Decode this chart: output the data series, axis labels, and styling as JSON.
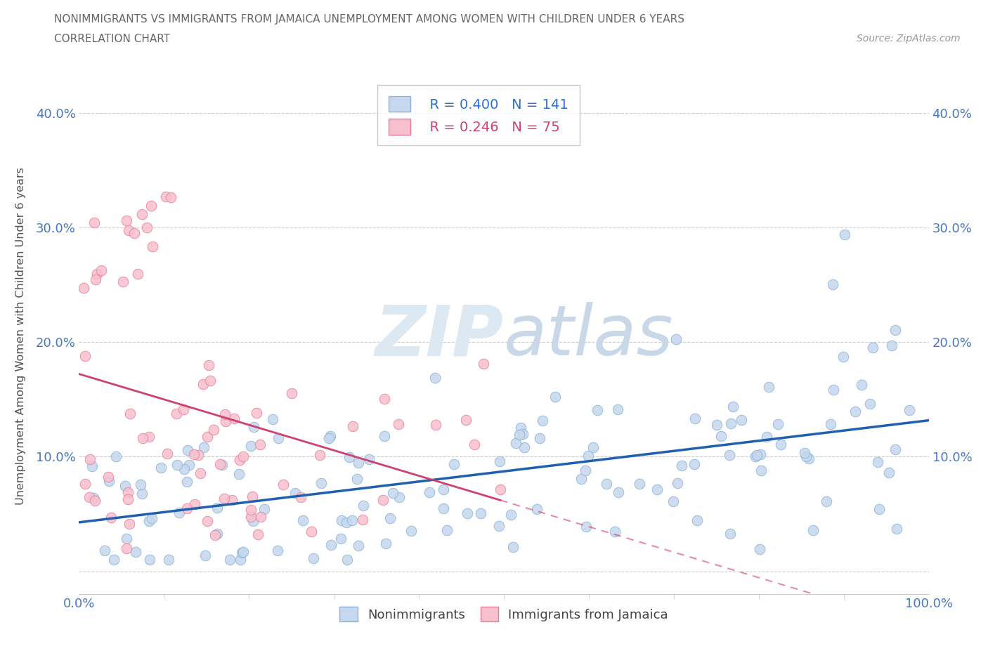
{
  "title_line1": "NONIMMIGRANTS VS IMMIGRANTS FROM JAMAICA UNEMPLOYMENT AMONG WOMEN WITH CHILDREN UNDER 6 YEARS",
  "title_line2": "CORRELATION CHART",
  "source": "Source: ZipAtlas.com",
  "ylabel": "Unemployment Among Women with Children Under 6 years",
  "xmin": 0.0,
  "xmax": 1.0,
  "ymin": -0.02,
  "ymax": 0.43,
  "yticks": [
    0.0,
    0.1,
    0.2,
    0.3,
    0.4
  ],
  "ytick_labels": [
    "",
    "10.0%",
    "20.0%",
    "30.0%",
    "40.0%"
  ],
  "xtick_labels": [
    "0.0%",
    "100.0%"
  ],
  "r_nonimm": 0.4,
  "n_nonimm": 141,
  "r_imm": 0.246,
  "n_imm": 75,
  "nonimm_color": "#c5d8ed",
  "nonimm_edge": "#8ab4d8",
  "imm_color": "#f7c0ce",
  "imm_edge": "#e8809a",
  "trend_nonimm_color": "#2060b0",
  "trend_imm_color": "#d04070",
  "background_color": "#ffffff",
  "grid_color": "#cccccc",
  "title_color": "#666666",
  "axis_label_color": "#555555",
  "tick_label_color": "#4878c0",
  "legend_r_color_nonimm": "#3070d0",
  "legend_r_color_imm": "#d04070",
  "watermark_color": "#dce8f2"
}
